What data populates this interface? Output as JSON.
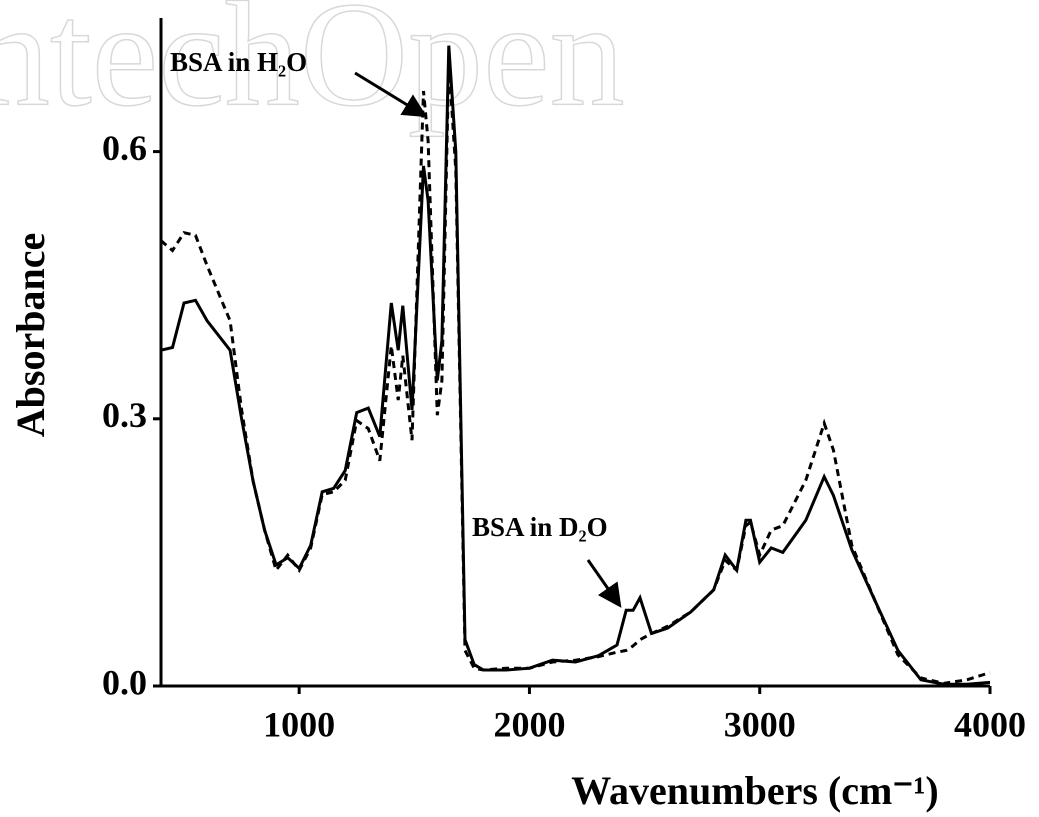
{
  "watermark": "IntechOpen",
  "chart_data": {
    "type": "line",
    "xlabel": "Wavenumbers (cm⁻¹)",
    "ylabel": "Absorbance",
    "x": [
      400,
      450,
      500,
      550,
      600,
      700,
      750,
      800,
      850,
      900,
      950,
      1000,
      1050,
      1100,
      1150,
      1200,
      1250,
      1300,
      1350,
      1400,
      1430,
      1450,
      1490,
      1540,
      1560,
      1600,
      1620,
      1650,
      1680,
      1720,
      1760,
      1800,
      1900,
      2000,
      2100,
      2200,
      2300,
      2380,
      2420,
      2450,
      2480,
      2530,
      2600,
      2700,
      2800,
      2850,
      2900,
      2940,
      2960,
      3000,
      3050,
      3100,
      3200,
      3280,
      3320,
      3400,
      3500,
      3600,
      3700,
      3800,
      3900,
      4000
    ],
    "series": [
      {
        "name": "BSA in H₂O",
        "color": "#000000",
        "line_style": "dashed",
        "values": [
          0.5,
          0.489,
          0.509,
          0.506,
          0.472,
          0.41,
          0.31,
          0.23,
          0.175,
          0.13,
          0.147,
          0.13,
          0.155,
          0.215,
          0.218,
          0.231,
          0.298,
          0.289,
          0.253,
          0.382,
          0.321,
          0.371,
          0.276,
          0.668,
          0.612,
          0.304,
          0.343,
          0.702,
          0.579,
          0.04,
          0.02,
          0.018,
          0.02,
          0.02,
          0.027,
          0.029,
          0.033,
          0.038,
          0.04,
          0.045,
          0.052,
          0.059,
          0.067,
          0.083,
          0.108,
          0.141,
          0.13,
          0.18,
          0.184,
          0.147,
          0.175,
          0.18,
          0.231,
          0.295,
          0.265,
          0.158,
          0.096,
          0.035,
          0.009,
          0.003,
          0.007,
          0.015
        ]
      },
      {
        "name": "BSA in D₂O",
        "color": "#000000",
        "line_style": "solid",
        "values": [
          0.377,
          0.38,
          0.43,
          0.433,
          0.41,
          0.377,
          0.3,
          0.23,
          0.175,
          0.136,
          0.144,
          0.132,
          0.158,
          0.218,
          0.222,
          0.242,
          0.307,
          0.312,
          0.28,
          0.43,
          0.377,
          0.427,
          0.31,
          0.584,
          0.545,
          0.343,
          0.388,
          0.719,
          0.6,
          0.052,
          0.024,
          0.018,
          0.018,
          0.02,
          0.029,
          0.027,
          0.034,
          0.046,
          0.085,
          0.085,
          0.099,
          0.059,
          0.065,
          0.083,
          0.108,
          0.147,
          0.13,
          0.186,
          0.186,
          0.139,
          0.155,
          0.15,
          0.186,
          0.235,
          0.214,
          0.153,
          0.096,
          0.04,
          0.007,
          0.002,
          0.002,
          0.004
        ]
      }
    ],
    "xlim": [
      400,
      4000
    ],
    "xticks": [
      1000,
      2000,
      3000,
      4000
    ],
    "ylim": [
      0,
      0.75
    ],
    "yticks": [
      {
        "value": 0,
        "label": "0.0"
      },
      0.3,
      0.6
    ],
    "grid": false
  }
}
